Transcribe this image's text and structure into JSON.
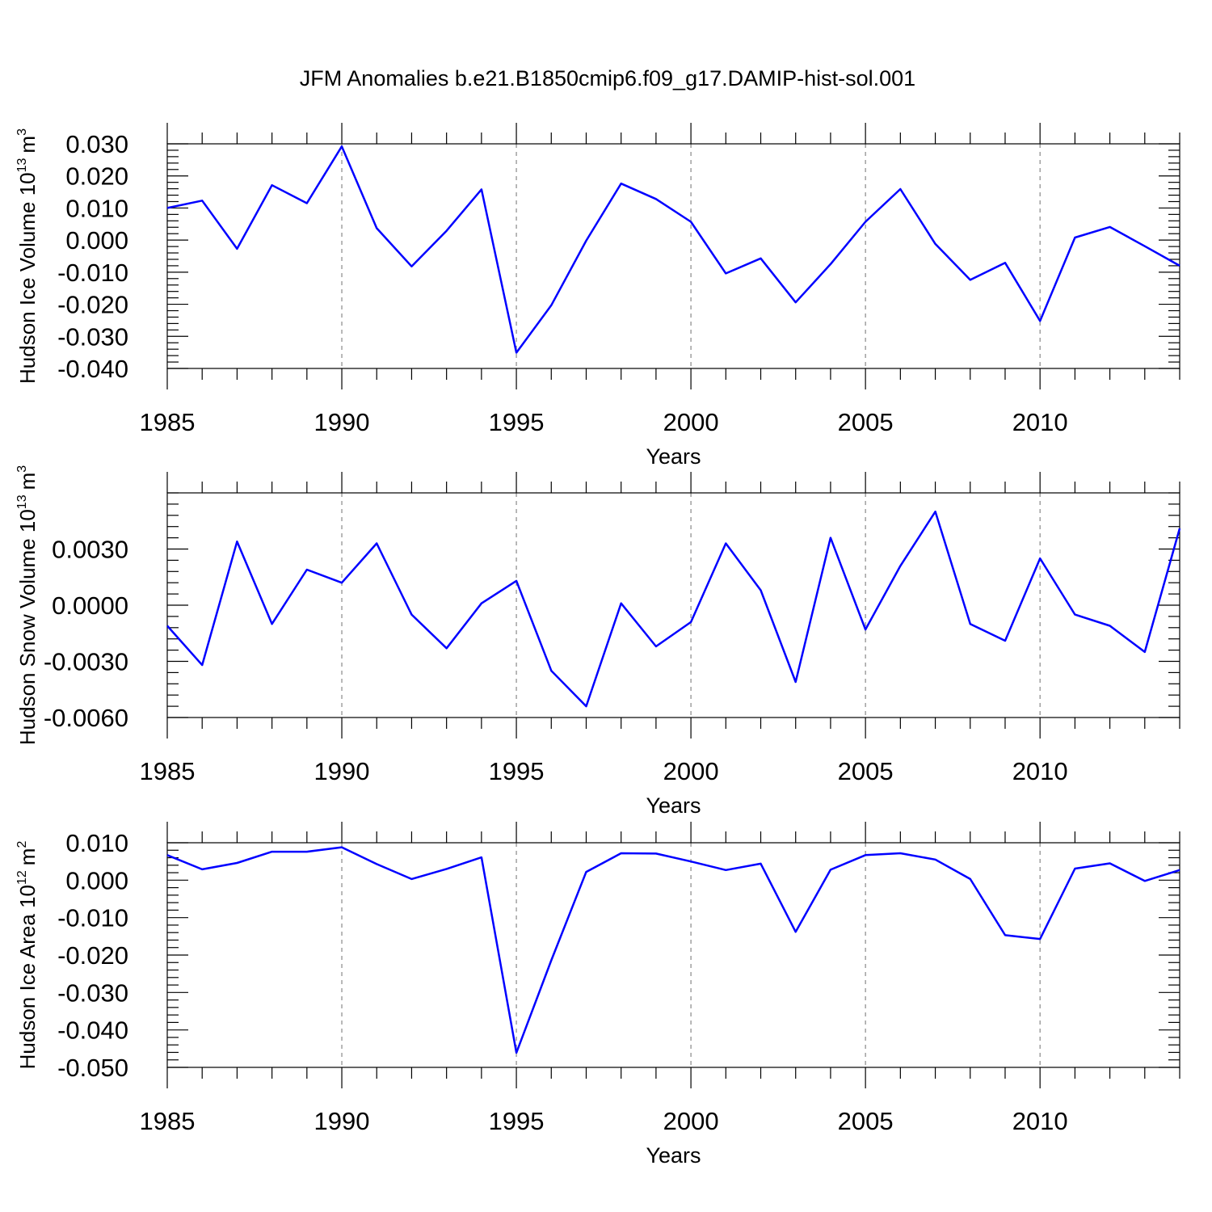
{
  "title": "JFM Anomalies b.e21.B1850cmip6.f09_g17.DAMIP-hist-sol.001",
  "series_color": "#0000ff",
  "chart_data": [
    {
      "type": "line",
      "xlabel": "Years",
      "ylabel": "Hudson Ice Volume 10",
      "ylabel_exp": "13",
      "ylabel_unit": "m",
      "ylabel_unit_exp": "3",
      "xlim": [
        1985,
        2014
      ],
      "ylim": [
        -0.04,
        0.03
      ],
      "yticks": [
        0.03,
        0.02,
        0.01,
        0.0,
        -0.01,
        -0.02,
        -0.03,
        -0.04
      ],
      "ytick_labels": [
        "0.030",
        "0.020",
        "0.010",
        "0.000",
        "-0.010",
        "-0.020",
        "-0.030",
        "-0.040"
      ],
      "xticks": [
        1985,
        1990,
        1995,
        2000,
        2005,
        2010
      ],
      "xtick_labels": [
        "1985",
        "1990",
        "1995",
        "2000",
        "2005",
        "2010"
      ],
      "x": [
        1985,
        1986,
        1987,
        1988,
        1989,
        1990,
        1991,
        1992,
        1993,
        1994,
        1995,
        1996,
        1997,
        1998,
        1999,
        2000,
        2001,
        2002,
        2003,
        2004,
        2005,
        2006,
        2007,
        2008,
        2009,
        2010,
        2011,
        2012,
        2013,
        2014
      ],
      "y": [
        0.01,
        0.0123,
        -0.0027,
        0.0171,
        0.0115,
        0.0292,
        0.0037,
        -0.0082,
        0.0029,
        0.0158,
        -0.0351,
        -0.0203,
        -0.0002,
        0.0176,
        0.0128,
        0.0057,
        -0.0104,
        -0.0057,
        -0.0194,
        -0.0075,
        0.0057,
        0.0159,
        -0.0012,
        -0.0124,
        -0.0071,
        -0.0252,
        0.0008,
        0.0041,
        -0.0019,
        -0.008
      ]
    },
    {
      "type": "line",
      "xlabel": "Years",
      "ylabel": "Hudson Snow Volume 10",
      "ylabel_exp": "13",
      "ylabel_unit": "m",
      "ylabel_unit_exp": "3",
      "xlim": [
        1985,
        2014
      ],
      "ylim": [
        -0.006,
        0.006
      ],
      "yticks": [
        0.003,
        0.0,
        -0.003,
        -0.006
      ],
      "ytick_labels": [
        "0.0030",
        "0.0000",
        "-0.0030",
        "-0.0060"
      ],
      "xticks": [
        1985,
        1990,
        1995,
        2000,
        2005,
        2010
      ],
      "xtick_labels": [
        "1985",
        "1990",
        "1995",
        "2000",
        "2005",
        "2010"
      ],
      "x": [
        1985,
        1986,
        1987,
        1988,
        1989,
        1990,
        1991,
        1992,
        1993,
        1994,
        1995,
        1996,
        1997,
        1998,
        1999,
        2000,
        2001,
        2002,
        2003,
        2004,
        2005,
        2006,
        2007,
        2008,
        2009,
        2010,
        2011,
        2012,
        2013,
        2014
      ],
      "y": [
        -0.0011,
        -0.0032,
        0.0034,
        -0.001,
        0.0019,
        0.0012,
        0.0033,
        -0.0005,
        -0.0023,
        0.0001,
        0.0013,
        -0.0035,
        -0.0054,
        0.0001,
        -0.0022,
        -0.0009,
        0.0033,
        0.0008,
        -0.0041,
        0.0036,
        -0.0013,
        0.0021,
        0.005,
        -0.001,
        -0.0019,
        0.0025,
        -0.0005,
        -0.0011,
        -0.0025,
        0.0041
      ]
    },
    {
      "type": "line",
      "xlabel": "Years",
      "ylabel": "Hudson Ice Area 10",
      "ylabel_exp": "12",
      "ylabel_unit": "m",
      "ylabel_unit_exp": "2",
      "xlim": [
        1985,
        2014
      ],
      "ylim": [
        -0.05,
        0.01
      ],
      "yticks": [
        0.01,
        0.0,
        -0.01,
        -0.02,
        -0.03,
        -0.04,
        -0.05
      ],
      "ytick_labels": [
        "0.010",
        "0.000",
        "-0.010",
        "-0.020",
        "-0.030",
        "-0.040",
        "-0.050"
      ],
      "xticks": [
        1985,
        1990,
        1995,
        2000,
        2005,
        2010
      ],
      "xtick_labels": [
        "1985",
        "1990",
        "1995",
        "2000",
        "2005",
        "2010"
      ],
      "x": [
        1985,
        1986,
        1987,
        1988,
        1989,
        1990,
        1991,
        1992,
        1993,
        1994,
        1995,
        1996,
        1997,
        1998,
        1999,
        2000,
        2001,
        2002,
        2003,
        2004,
        2005,
        2006,
        2007,
        2008,
        2009,
        2010,
        2011,
        2012,
        2013,
        2014
      ],
      "y": [
        0.0067,
        0.0029,
        0.0046,
        0.0076,
        0.0076,
        0.0088,
        0.0043,
        0.0003,
        0.003,
        0.0061,
        -0.0461,
        -0.0214,
        0.0022,
        0.0072,
        0.0071,
        0.005,
        0.0027,
        0.0044,
        -0.0138,
        0.0028,
        0.0067,
        0.0072,
        0.0055,
        0.0003,
        -0.0147,
        -0.0157,
        0.0031,
        0.0045,
        -0.0002,
        0.0027
      ]
    }
  ]
}
